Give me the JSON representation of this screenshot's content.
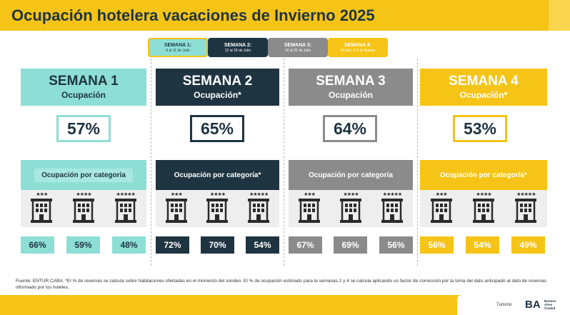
{
  "title": "Ocupación hotelera vacaciones de Invierno 2025",
  "colors": {
    "yellow": "#f6c416",
    "teal": "#8ddfd6",
    "navy": "#1f3441",
    "gray": "#8b8b8b"
  },
  "tabs": [
    {
      "label": "SEMANA 1:",
      "dates": "5 al 11 de Julio"
    },
    {
      "label": "SEMANA 2:",
      "dates": "12 al 18 de Julio"
    },
    {
      "label": "SEMANA 3:",
      "dates": "19 al 25 de Julio"
    },
    {
      "label": "SEMANA 4:",
      "dates": "26 julio al 2 de Agosto"
    }
  ],
  "weeks": [
    {
      "title": "SEMANA 1",
      "subtitle": "Ocupación",
      "occupancy": "57%",
      "category_label": "Ocupación por categoría",
      "values": [
        "66%",
        "59%",
        "48%"
      ]
    },
    {
      "title": "SEMANA 2",
      "subtitle": "Ocupación*",
      "occupancy": "65%",
      "category_label": "Ocupación por categoría*",
      "values": [
        "72%",
        "70%",
        "54%"
      ]
    },
    {
      "title": "SEMANA 3",
      "subtitle": "Ocupación",
      "occupancy": "64%",
      "category_label": "Ocupación por categoría",
      "values": [
        "67%",
        "69%",
        "56%"
      ]
    },
    {
      "title": "SEMANA 4",
      "subtitle": "Ocupación*",
      "occupancy": "53%",
      "category_label": "Ocupación por categoría*",
      "values": [
        "56%",
        "54%",
        "49%"
      ]
    }
  ],
  "hotel_categories": [
    {
      "stars": "★★★",
      "icon": "hotel-3-star-icon"
    },
    {
      "stars": "★★★★",
      "icon": "hotel-4-star-icon"
    },
    {
      "stars": "★★★★★",
      "icon": "hotel-5-star-icon"
    }
  ],
  "footnote": "Fuente: ENTUR CABA. *El % de reservas se calcula sobre habitaciones ofertadas en el momento del sondeo. El % de ocupación estimado para la semanas 2 y 4 se calcula aplicando un factor de corrección por la toma del dato anticipado al dato de reservas informado por los hoteles.",
  "footer": {
    "turismo": "Turismo",
    "logo": "BA",
    "logo_text_1": "Buenos",
    "logo_text_2": "Aires",
    "logo_text_3": "Ciudad"
  }
}
